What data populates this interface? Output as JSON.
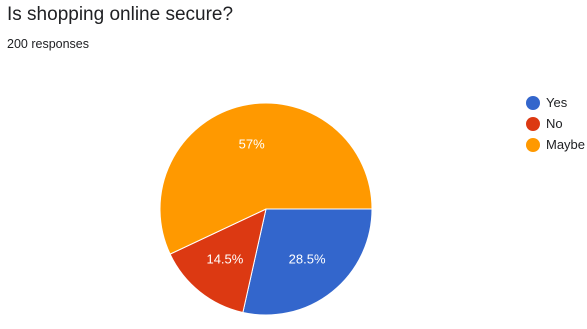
{
  "question": {
    "title": "Is shopping online secure?",
    "responses": "200 responses"
  },
  "chart_data": {
    "type": "pie",
    "categories": [
      "Yes",
      "No",
      "Maybe"
    ],
    "values": [
      28.5,
      14.5,
      57
    ],
    "value_labels": [
      "28.5%",
      "14.5%",
      "57%"
    ],
    "colors": [
      "#3366cc",
      "#dc3912",
      "#ff9900"
    ],
    "legend_position": "right"
  }
}
